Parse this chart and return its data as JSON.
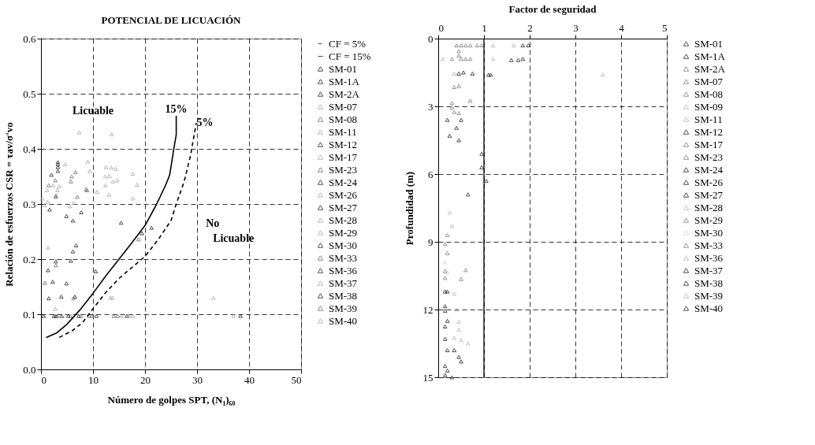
{
  "chart_data": [
    {
      "type": "scatter",
      "title": "POTENCIAL DE LICUACIÓN",
      "xlabel": "Número de golpes SPT, (N₁)₆₀",
      "ylabel": "Relación de esfuerzos CSR = τav/σ'vo",
      "marker": "triangle",
      "legend": "right",
      "grid": true,
      "xlim": [
        0,
        50
      ],
      "xticks": [
        0,
        10,
        20,
        30,
        40,
        50
      ],
      "ylim": [
        0,
        0.6
      ],
      "yticks": [
        {
          "value": 0,
          "label": "0.0"
        },
        {
          "value": 0.1,
          "label": "0.1"
        },
        {
          "value": 0.2,
          "label": "0.2"
        },
        {
          "value": 0.3,
          "label": "0.3"
        },
        {
          "value": 0.4,
          "label": "0.4"
        },
        {
          "value": 0.5,
          "label": "0.5"
        },
        {
          "value": 0.6,
          "label": "0.6"
        }
      ],
      "annotations": [
        "Licuable",
        "15%",
        "5%",
        "No",
        "Licuable"
      ],
      "series": [
        {
          "name": "CF = 5%",
          "type": "line",
          "marker": "none",
          "line_style": "dashed",
          "color": "#000000",
          "x": [
            3.5,
            6,
            8,
            10,
            12.5,
            15,
            17.5,
            20,
            22.5,
            25,
            26,
            27.5,
            28.75,
            29.85
          ],
          "values": [
            0.058,
            0.07,
            0.085,
            0.11,
            0.14,
            0.165,
            0.185,
            0.205,
            0.235,
            0.27,
            0.3,
            0.34,
            0.388,
            0.447
          ]
        },
        {
          "name": "CF = 15%",
          "type": "line",
          "marker": "none",
          "line_style": "solid",
          "color": "#000000",
          "x": [
            1,
            3,
            5,
            7.5,
            10,
            12.5,
            15,
            17.5,
            20,
            22.25,
            24,
            24.75,
            25.5,
            26,
            26
          ],
          "values": [
            0.058,
            0.066,
            0.082,
            0.108,
            0.138,
            0.17,
            0.2,
            0.23,
            0.261,
            0.3,
            0.335,
            0.353,
            0.398,
            0.426,
            0.46
          ]
        },
        {
          "name": "SM-01",
          "color": "#000000",
          "x": [
            3.25,
            3.25,
            3.25,
            3.25
          ],
          "values": [
            0.376,
            0.372,
            0.367,
            0.36
          ]
        },
        {
          "name": "SM-1A",
          "color": "#000000",
          "x": [
            2,
            1.65,
            4.9,
            6.15
          ],
          "values": [
            0.353,
            0.29,
            0.278,
            0.27
          ]
        },
        {
          "name": "SM-2A",
          "color": "#000000",
          "x": [
            7.75,
            15.4,
            19.4
          ],
          "values": [
            0.285,
            0.266,
            0.247
          ]
        },
        {
          "name": "SM-07",
          "color": "#999999",
          "x": [
            7.35,
            13.6,
            4.65,
            9,
            9.35
          ],
          "values": [
            0.43,
            0.427,
            0.372,
            0.377,
            0.36
          ]
        },
        {
          "name": "SM-08",
          "color": "#555555",
          "x": [
            5.9,
            6.65,
            5.75,
            2.75,
            1.5
          ],
          "values": [
            0.35,
            0.358,
            0.341,
            0.343,
            0.334
          ]
        },
        {
          "name": "SM-11",
          "color": "#999999",
          "x": [
            2.35,
            3.5,
            1.15,
            3.15
          ],
          "values": [
            0.334,
            0.332,
            0.325,
            0.325
          ]
        },
        {
          "name": "SM-12",
          "color": "#000000",
          "x": [
            21.25,
            6.75,
            6.15
          ],
          "values": [
            0.257,
            0.225,
            0.214
          ]
        },
        {
          "name": "SM-17",
          "color": "#999999",
          "x": [
            12.5,
            13.5,
            14.35,
            12.35,
            13.15,
            13.85,
            14.65
          ],
          "values": [
            0.367,
            0.366,
            0.364,
            0.35,
            0.351,
            0.341,
            0.343
          ]
        },
        {
          "name": "SM-23",
          "color": "#555555",
          "x": [
            2.85,
            2.85,
            7,
            8.65,
            8.85
          ],
          "values": [
            0.315,
            0.313,
            0.313,
            0.327,
            0.325
          ]
        },
        {
          "name": "SM-24",
          "color": "#000000",
          "x": [
            5.75,
            2.85,
            1.35
          ],
          "values": [
            0.197,
            0.196,
            0.18
          ]
        },
        {
          "name": "SM-26",
          "color": "#999999",
          "x": [
            17.65,
            18.5,
            12.4,
            13.1,
            17.65,
            10.75
          ],
          "values": [
            0.355,
            0.335,
            0.334,
            0.317,
            0.31,
            0.322
          ]
        },
        {
          "name": "SM-27",
          "color": "#000000",
          "x": [
            10.5,
            2.25,
            4.9
          ],
          "values": [
            0.178,
            0.159,
            0.156
          ]
        },
        {
          "name": "SM-28",
          "color": "#999999",
          "x": [
            0.25,
            1.25,
            0.65
          ],
          "values": [
            0.31,
            0.304,
            0.298
          ]
        },
        {
          "name": "SM-29",
          "color": "#999999",
          "x": [
            5.5,
            6.25,
            1.35
          ],
          "values": [
            0.296,
            0.302,
            0.221
          ]
        },
        {
          "name": "SM-30",
          "color": "#000000",
          "x": [
            1.5,
            3.9,
            6.5
          ],
          "values": [
            0.129,
            0.132,
            0.132
          ]
        },
        {
          "name": "SM-33",
          "color": "#555555",
          "x": [
            18.75,
            0.75,
            2.85,
            6.25
          ],
          "values": [
            0.236,
            0.157,
            0.189,
            0.129
          ]
        },
        {
          "name": "SM-36",
          "color": "#000000",
          "x": [
            0.5,
            2.5,
            2.85,
            4
          ],
          "values": [
            0.097,
            0.097,
            0.097,
            0.097
          ]
        },
        {
          "name": "SM-37",
          "color": "#999999",
          "x": [
            13.35,
            13.75,
            33.15,
            2.75
          ],
          "values": [
            0.13,
            0.13,
            0.13,
            0.11
          ]
        },
        {
          "name": "SM-38",
          "color": "#000000",
          "x": [
            5.25,
            7.25,
            10.65,
            16.5,
            38.35
          ],
          "values": [
            0.097,
            0.097,
            0.097,
            0.097,
            0.097
          ]
        },
        {
          "name": "SM-39",
          "color": "#555555",
          "x": [
            3.15,
            5.65,
            7.65,
            9.25,
            9.75,
            14,
            14.75
          ],
          "values": [
            0.097,
            0.097,
            0.097,
            0.097,
            0.097,
            0.097,
            0.097
          ]
        },
        {
          "name": "SM-40",
          "color": "#999999",
          "x": [
            15.5,
            16.85,
            17.65,
            37
          ],
          "values": [
            0.097,
            0.097,
            0.097,
            0.097
          ]
        }
      ]
    },
    {
      "type": "scatter",
      "title": "Factor de seguridad",
      "ylabel": "Profundidad (m)",
      "marker": "triangle",
      "legend": "right",
      "grid": true,
      "xlim": [
        0,
        5
      ],
      "xticks": [
        0,
        1,
        2,
        3,
        4,
        5
      ],
      "ylim": [
        15,
        0
      ],
      "yticks": [
        0,
        3,
        6,
        9,
        12,
        15
      ],
      "ref_lines": [
        {
          "axis": "x",
          "value": 1,
          "color": "#000000",
          "line_style": "solid"
        }
      ],
      "series": [
        {
          "name": "SM-01",
          "color": "#000000",
          "x": [
            1.85,
            1.97,
            1.75,
            1.85
          ],
          "values": [
            0.3,
            0.3,
            0.95,
            0.9
          ]
        },
        {
          "name": "SM-1A",
          "color": "#000000",
          "x": [
            1.6,
            1.1,
            1.15
          ],
          "values": [
            0.95,
            1.6,
            1.6
          ]
        },
        {
          "name": "SM-2A",
          "color": "#666666",
          "x": [
            0.4,
            0.5,
            0.6,
            0.45,
            0.45
          ],
          "values": [
            0.3,
            0.3,
            0.3,
            0.55,
            0.75
          ]
        },
        {
          "name": "SM-07",
          "color": "#666666",
          "x": [
            0.7,
            0.85,
            0.95
          ],
          "values": [
            0.3,
            0.3,
            0.3
          ]
        },
        {
          "name": "SM-08",
          "color": "#666666",
          "x": [
            0.3,
            0.5,
            0.6,
            0.7
          ],
          "values": [
            0.9,
            0.9,
            0.9,
            0.9
          ]
        },
        {
          "name": "SM-09",
          "color": "#aaaaaa",
          "x": [
            1.2,
            1.65,
            1.2,
            0.1
          ],
          "values": [
            0.3,
            0.3,
            0.9,
            0.9
          ]
        },
        {
          "name": "SM-11",
          "color": "#aaaaaa",
          "x": [
            3.6,
            0.35
          ],
          "values": [
            1.6,
            1.55
          ]
        },
        {
          "name": "SM-12",
          "color": "#000000",
          "x": [
            0.45,
            0.55,
            0.75
          ],
          "values": [
            1.55,
            1.5,
            1.55
          ]
        },
        {
          "name": "SM-17",
          "color": "#666666",
          "x": [
            0.35,
            0.45,
            0.7
          ],
          "values": [
            2.15,
            2.1,
            2.75
          ]
        },
        {
          "name": "SM-23",
          "color": "#666666",
          "x": [
            0.3,
            0.3,
            0.35,
            0.45
          ],
          "values": [
            2.85,
            3.05,
            3.25,
            3.3
          ]
        },
        {
          "name": "SM-24",
          "color": "#000000",
          "x": [
            0.2,
            0.5,
            0.4,
            0.25,
            0.45
          ],
          "values": [
            3.6,
            3.6,
            3.95,
            4.3,
            4.5
          ]
        },
        {
          "name": "SM-26",
          "color": "#000000",
          "x": [
            0.95,
            0.95,
            1.05,
            0.65
          ],
          "values": [
            5.1,
            5.7,
            6.3,
            6.9
          ]
        },
        {
          "name": "SM-27",
          "color": "#000000",
          "x": [
            0.2,
            0.35
          ],
          "values": [
            13.8,
            13.8
          ]
        },
        {
          "name": "SM-28",
          "color": "#aaaaaa",
          "x": [
            0.25,
            0.3
          ],
          "values": [
            7.7,
            8.3
          ]
        },
        {
          "name": "SM-29",
          "color": "#666666",
          "x": [
            0.2,
            0.15,
            0.2
          ],
          "values": [
            8.7,
            9.1,
            9.5
          ]
        },
        {
          "name": "SM-30",
          "color": "#cccccc",
          "x": [
            0.15,
            0.2
          ],
          "values": [
            9.9,
            10.35
          ]
        },
        {
          "name": "SM-33",
          "color": "#666666",
          "x": [
            0.15,
            0.6,
            0.15,
            0.5
          ],
          "values": [
            10.3,
            10.25,
            10.6,
            10.65
          ]
        },
        {
          "name": "SM-36",
          "color": "#aaaaaa",
          "x": [
            0.35,
            0.4
          ],
          "values": [
            11.3,
            12.0
          ]
        },
        {
          "name": "SM-37",
          "color": "#000000",
          "x": [
            0.15,
            0.2,
            0.15,
            0.15
          ],
          "values": [
            11.2,
            11.2,
            11.85,
            12.05
          ]
        },
        {
          "name": "SM-38",
          "color": "#000000",
          "x": [
            0.2,
            0.15,
            0.15
          ],
          "values": [
            12.5,
            12.75,
            13.3
          ]
        },
        {
          "name": "SM-39",
          "color": "#aaaaaa",
          "x": [
            0.45,
            0.45,
            0.35,
            0.5,
            0.65
          ],
          "values": [
            12.55,
            12.9,
            13.25,
            13.35,
            13.5
          ]
        },
        {
          "name": "SM-40",
          "color": "#000000",
          "x": [
            0.45,
            0.5,
            0.15,
            0.2,
            0.15,
            0.3
          ],
          "values": [
            14.1,
            14.3,
            14.5,
            14.7,
            14.9,
            15.0
          ]
        }
      ]
    }
  ]
}
